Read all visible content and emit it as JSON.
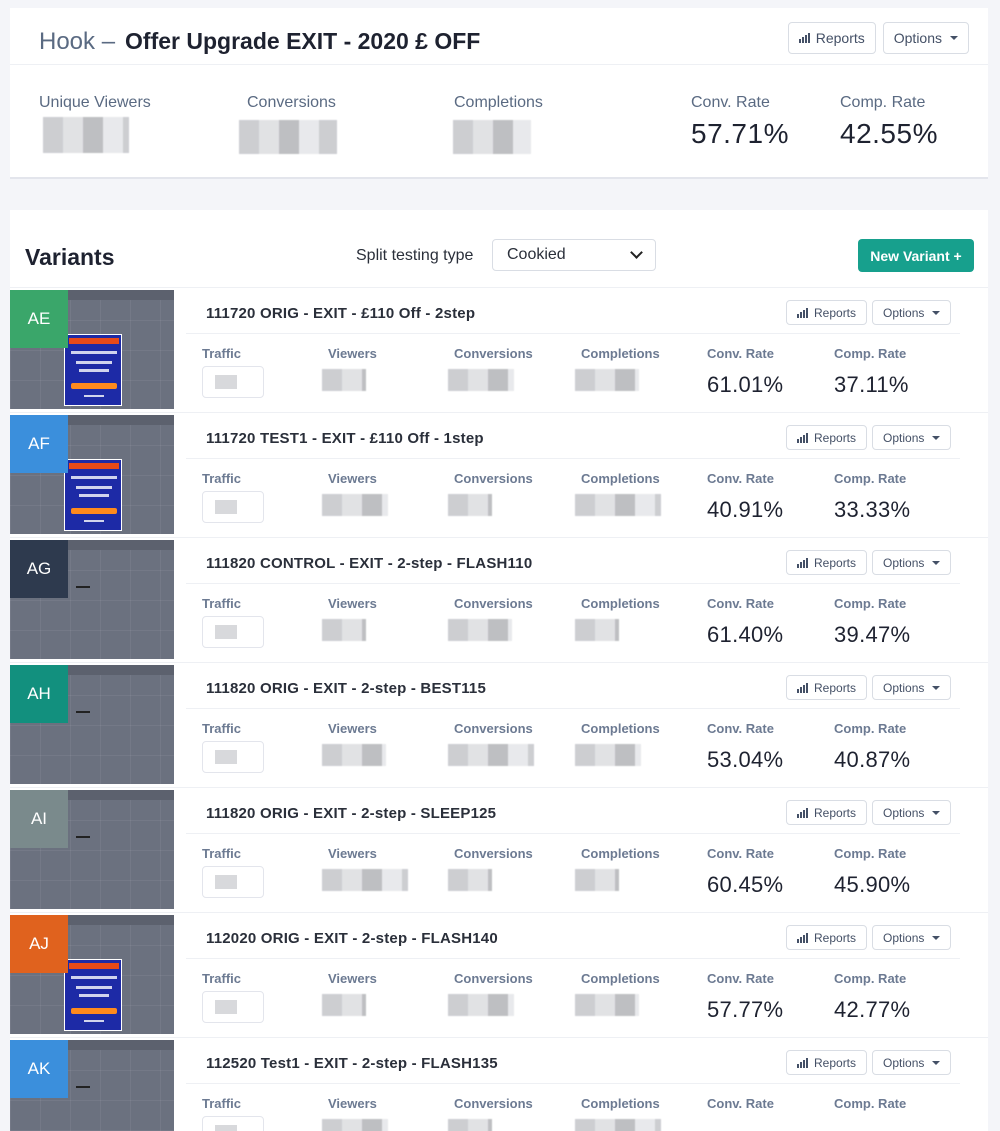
{
  "header": {
    "prefix": "Hook –",
    "title": "Offer Upgrade EXIT - 2020 £ OFF",
    "reports_label": "Reports",
    "options_label": "Options",
    "stats": {
      "unique_viewers_label": "Unique Viewers",
      "conversions_label": "Conversions",
      "completions_label": "Completions",
      "conv_rate_label": "Conv. Rate",
      "conv_rate_value": "57.71%",
      "comp_rate_label": "Comp. Rate",
      "comp_rate_value": "42.55%"
    }
  },
  "variants_section": {
    "title": "Variants",
    "split_label": "Split testing type",
    "split_value": "Cookied",
    "new_variant_label": "New Variant +"
  },
  "stat_labels": {
    "traffic": "Traffic",
    "viewers": "Viewers",
    "conversions": "Conversions",
    "completions": "Completions",
    "conv_rate": "Conv. Rate",
    "comp_rate": "Comp. Rate"
  },
  "row_buttons": {
    "reports": "Reports",
    "options": "Options"
  },
  "variants": [
    {
      "badge": "AE",
      "color": "#3aa66a",
      "name": "111720 ORIG - EXIT - £110 Off - 2step",
      "conv_rate": "61.01%",
      "comp_rate": "37.11%",
      "thumb": "popup"
    },
    {
      "badge": "AF",
      "color": "#3b8fdc",
      "name": "111720 TEST1 - EXIT - £110 Off - 1step",
      "conv_rate": "40.91%",
      "comp_rate": "33.33%",
      "thumb": "popup"
    },
    {
      "badge": "AG",
      "color": "#2e3a4e",
      "name": "111820 CONTROL - EXIT - 2-step - FLASH110",
      "conv_rate": "61.40%",
      "comp_rate": "39.47%",
      "thumb": "plain"
    },
    {
      "badge": "AH",
      "color": "#12907e",
      "name": "111820 ORIG - EXIT - 2-step - BEST115",
      "conv_rate": "53.04%",
      "comp_rate": "40.87%",
      "thumb": "plain"
    },
    {
      "badge": "AI",
      "color": "#7a8a8c",
      "name": "111820 ORIG - EXIT - 2-step - SLEEP125",
      "conv_rate": "60.45%",
      "comp_rate": "45.90%",
      "thumb": "plain"
    },
    {
      "badge": "AJ",
      "color": "#e0621e",
      "name": "112020 ORIG - EXIT - 2-step - FLASH140",
      "conv_rate": "57.77%",
      "comp_rate": "42.77%",
      "thumb": "popup"
    },
    {
      "badge": "AK",
      "color": "#3b8fdc",
      "name": "112520 Test1 - EXIT - 2-step - FLASH135",
      "conv_rate": "",
      "comp_rate": "",
      "thumb": "plain"
    }
  ]
}
